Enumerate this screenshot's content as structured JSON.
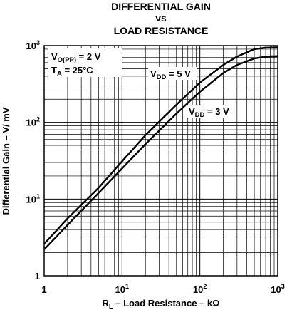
{
  "chart_data": {
    "type": "line",
    "title_lines": [
      "DIFFERENTIAL GAIN",
      "vs",
      "LOAD RESISTANCE"
    ],
    "xlabel": {
      "main": "R",
      "sub": "L",
      "rest": " – Load Resistance – kΩ"
    },
    "ylabel": "Differential Gain – V/ mV",
    "x_scale": "log",
    "y_scale": "log",
    "xlim": [
      1,
      1000
    ],
    "ylim": [
      1,
      1000
    ],
    "grid": true,
    "x_ticks": [
      {
        "base": "1",
        "exp": ""
      },
      {
        "base": "10",
        "exp": "1"
      },
      {
        "base": "10",
        "exp": "2"
      },
      {
        "base": "10",
        "exp": "3"
      }
    ],
    "y_ticks": [
      {
        "base": "1",
        "exp": ""
      },
      {
        "base": "10",
        "exp": "1"
      },
      {
        "base": "10",
        "exp": "2"
      },
      {
        "base": "10",
        "exp": "3"
      }
    ],
    "conditions": [
      {
        "main": "V",
        "sub": "O(PP)",
        "rest": " = 2 V"
      },
      {
        "main": "T",
        "sub": "A",
        "rest": " = 25°C"
      }
    ],
    "series": [
      {
        "name": "VDD = 5 V",
        "label": {
          "main": "V",
          "sub": "DD",
          "rest": " = 5 V"
        },
        "x": [
          1,
          2,
          5,
          10,
          20,
          50,
          100,
          200,
          300,
          500,
          700,
          1000
        ],
        "y": [
          2.6,
          5.6,
          14,
          31,
          68,
          170,
          330,
          560,
          720,
          900,
          940,
          950
        ]
      },
      {
        "name": "VDD = 3 V",
        "label": {
          "main": "V",
          "sub": "DD",
          "rest": " = 3 V"
        },
        "x": [
          1,
          2,
          5,
          10,
          20,
          50,
          100,
          200,
          300,
          500,
          700,
          1000
        ],
        "y": [
          2.2,
          4.6,
          12,
          25,
          52,
          130,
          250,
          440,
          560,
          680,
          720,
          730
        ]
      }
    ]
  }
}
